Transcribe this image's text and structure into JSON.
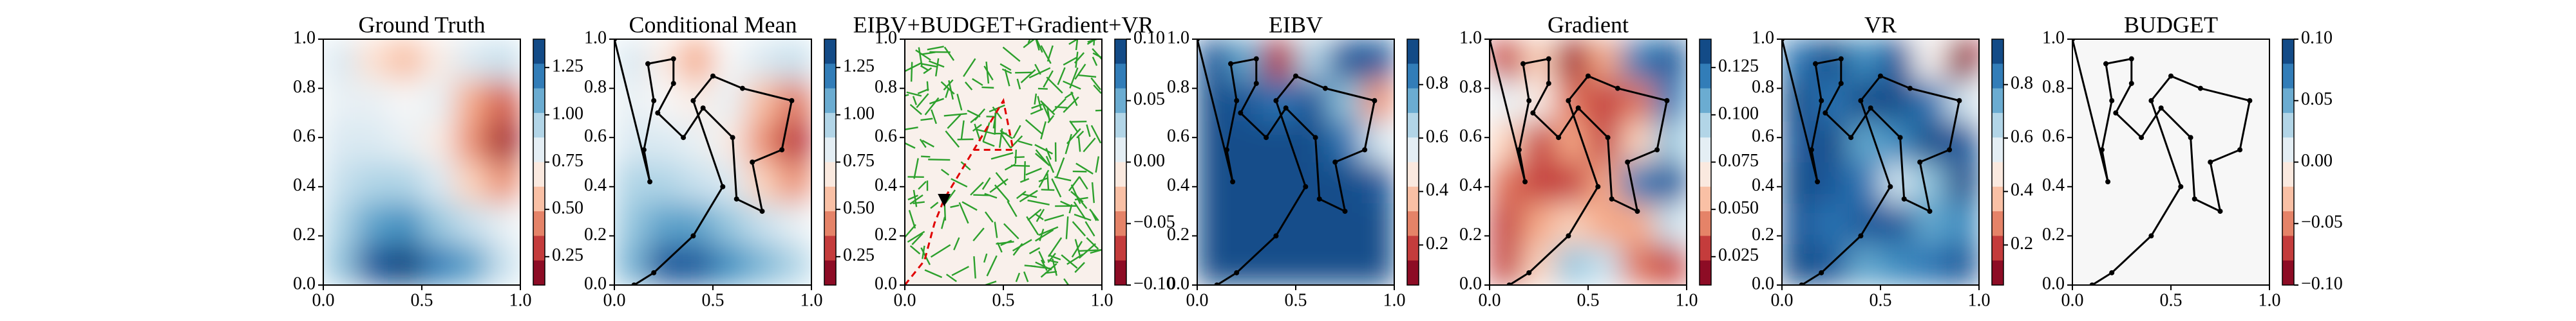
{
  "chart_data": [
    {
      "type": "heatmap",
      "title": "Ground Truth",
      "xlim": [
        0,
        1
      ],
      "ylim": [
        0,
        1
      ],
      "xticks": [
        {
          "value": 0,
          "label": "0.0"
        },
        {
          "value": 0.5,
          "label": "0.5"
        },
        {
          "value": 1,
          "label": "1.0"
        }
      ],
      "yticks": [
        {
          "value": 0,
          "label": "0.0"
        },
        {
          "value": 0.2,
          "label": "0.2"
        },
        {
          "value": 0.4,
          "label": "0.4"
        },
        {
          "value": 0.6,
          "label": "0.6"
        },
        {
          "value": 0.8,
          "label": "0.8"
        },
        {
          "value": 1,
          "label": "1.0"
        }
      ],
      "z": [
        [
          1.0,
          1.3,
          1.35,
          1.2,
          1.1,
          0.9
        ],
        [
          0.95,
          1.1,
          1.15,
          1.0,
          0.9,
          0.8
        ],
        [
          0.9,
          0.95,
          0.95,
          0.85,
          0.6,
          0.45
        ],
        [
          0.85,
          0.85,
          0.8,
          0.7,
          0.45,
          0.2
        ],
        [
          0.8,
          0.8,
          0.75,
          0.8,
          0.5,
          0.35
        ],
        [
          0.85,
          0.65,
          0.55,
          0.7,
          0.85,
          0.9
        ]
      ],
      "zlim": [
        0.1,
        1.4
      ],
      "zticks": [
        {
          "value": 0.25,
          "label": "0.25"
        },
        {
          "value": 0.5,
          "label": "0.50"
        },
        {
          "value": 0.75,
          "label": "0.75"
        },
        {
          "value": 1,
          "label": "1.00"
        },
        {
          "value": 1.25,
          "label": "1.25"
        }
      ]
    },
    {
      "type": "heatmap",
      "title": "Conditional Mean",
      "xlim": [
        0,
        1
      ],
      "ylim": [
        0,
        1
      ],
      "xticks": [
        {
          "value": 0,
          "label": "0.0"
        },
        {
          "value": 0.5,
          "label": "0.5"
        },
        {
          "value": 1,
          "label": "1.0"
        }
      ],
      "yticks": [
        {
          "value": 0,
          "label": "0.0"
        },
        {
          "value": 0.2,
          "label": "0.2"
        },
        {
          "value": 0.4,
          "label": "0.4"
        },
        {
          "value": 0.6,
          "label": "0.6"
        },
        {
          "value": 0.8,
          "label": "0.8"
        },
        {
          "value": 1,
          "label": "1.0"
        }
      ],
      "z": [
        [
          1.05,
          1.3,
          1.3,
          1.15,
          1.05,
          0.95
        ],
        [
          1.0,
          1.1,
          1.1,
          1.0,
          0.9,
          0.8
        ],
        [
          0.95,
          0.95,
          0.9,
          0.85,
          0.6,
          0.45
        ],
        [
          0.85,
          0.85,
          0.8,
          0.7,
          0.45,
          0.25
        ],
        [
          0.8,
          0.75,
          0.7,
          0.8,
          0.55,
          0.4
        ],
        [
          0.85,
          0.7,
          0.5,
          0.75,
          0.85,
          0.9
        ]
      ],
      "zlim": [
        0.1,
        1.4
      ],
      "zticks": [
        {
          "value": 0.25,
          "label": "0.25"
        },
        {
          "value": 0.5,
          "label": "0.50"
        },
        {
          "value": 0.75,
          "label": "0.75"
        },
        {
          "value": 1,
          "label": "1.00"
        },
        {
          "value": 1.25,
          "label": "1.25"
        }
      ],
      "path_x": [
        0.0,
        0.18,
        0.15,
        0.2,
        0.17,
        0.3,
        0.3,
        0.22,
        0.35,
        0.45,
        0.6,
        0.62,
        0.75,
        0.7,
        0.85,
        0.9,
        0.65,
        0.5,
        0.4,
        0.55,
        0.4,
        0.2,
        0.1
      ],
      "path_y": [
        1.0,
        0.42,
        0.55,
        0.75,
        0.9,
        0.92,
        0.82,
        0.7,
        0.6,
        0.72,
        0.6,
        0.35,
        0.3,
        0.5,
        0.55,
        0.75,
        0.8,
        0.85,
        0.75,
        0.4,
        0.2,
        0.05,
        0.0
      ]
    },
    {
      "type": "heatmap",
      "title": "EIBV+BUDGET+Gradient+VR",
      "xlim": [
        0,
        1
      ],
      "ylim": [
        0,
        1
      ],
      "xticks": [
        {
          "value": 0,
          "label": "0.0"
        },
        {
          "value": 0.5,
          "label": "0.5"
        },
        {
          "value": 1,
          "label": "1.0"
        }
      ],
      "yticks": [
        {
          "value": 0,
          "label": "0.0"
        },
        {
          "value": 0.2,
          "label": "0.2"
        },
        {
          "value": 0.4,
          "label": "0.4"
        },
        {
          "value": 0.6,
          "label": "0.6"
        },
        {
          "value": 0.8,
          "label": "0.8"
        },
        {
          "value": 1,
          "label": "1.0"
        }
      ],
      "z": [
        [
          -0.005
        ]
      ],
      "zlim": [
        -0.1,
        0.1
      ],
      "zticks": [
        {
          "value": -0.1,
          "label": "−0.10"
        },
        {
          "value": -0.05,
          "label": "−0.05"
        },
        {
          "value": 0,
          "label": "0.00"
        },
        {
          "value": 0.05,
          "label": "0.05"
        },
        {
          "value": 0.1,
          "label": "0.10"
        }
      ],
      "tree": true,
      "route_x": [
        0.0,
        0.1,
        0.15,
        0.2,
        0.35,
        0.5,
        0.55,
        0.35
      ],
      "route_y": [
        0.0,
        0.1,
        0.25,
        0.35,
        0.55,
        0.75,
        0.55,
        0.55
      ]
    },
    {
      "type": "heatmap",
      "title": "EIBV",
      "xlim": [
        0,
        1
      ],
      "ylim": [
        0,
        1
      ],
      "xticks": [
        {
          "value": 0,
          "label": "0.0"
        },
        {
          "value": 0.5,
          "label": "0.5"
        },
        {
          "value": 1,
          "label": "1.0"
        }
      ],
      "yticks": [
        {
          "value": 0,
          "label": "0.0"
        },
        {
          "value": 0.2,
          "label": "0.2"
        },
        {
          "value": 0.4,
          "label": "0.4"
        },
        {
          "value": 0.6,
          "label": "0.6"
        },
        {
          "value": 0.8,
          "label": "0.8"
        },
        {
          "value": 1,
          "label": "1.0"
        }
      ],
      "z": [
        [
          0.92,
          0.92,
          0.92,
          0.92,
          0.92,
          0.92
        ],
        [
          0.92,
          0.92,
          0.92,
          0.92,
          0.92,
          0.92
        ],
        [
          0.92,
          0.92,
          0.92,
          0.92,
          0.92,
          0.9
        ],
        [
          0.92,
          0.92,
          0.92,
          0.92,
          0.85,
          0.6
        ],
        [
          0.92,
          0.9,
          0.85,
          0.9,
          0.7,
          0.3
        ],
        [
          0.9,
          0.75,
          0.15,
          0.65,
          0.9,
          0.9
        ]
      ],
      "zlim": [
        0.05,
        0.97
      ],
      "zticks": [
        {
          "value": 0.2,
          "label": "0.2"
        },
        {
          "value": 0.4,
          "label": "0.4"
        },
        {
          "value": 0.6,
          "label": "0.6"
        },
        {
          "value": 0.8,
          "label": "0.8"
        }
      ],
      "path_x": [
        0.0,
        0.18,
        0.15,
        0.2,
        0.17,
        0.3,
        0.3,
        0.22,
        0.35,
        0.45,
        0.6,
        0.62,
        0.75,
        0.7,
        0.85,
        0.9,
        0.65,
        0.5,
        0.4,
        0.55,
        0.4,
        0.2,
        0.1
      ],
      "path_y": [
        1.0,
        0.42,
        0.55,
        0.75,
        0.9,
        0.92,
        0.82,
        0.7,
        0.6,
        0.72,
        0.6,
        0.35,
        0.3,
        0.5,
        0.55,
        0.75,
        0.8,
        0.85,
        0.75,
        0.4,
        0.2,
        0.05,
        0.0
      ]
    },
    {
      "type": "heatmap",
      "title": "Gradient",
      "xlim": [
        0,
        1
      ],
      "ylim": [
        0,
        1
      ],
      "xticks": [
        {
          "value": 0,
          "label": "0.0"
        },
        {
          "value": 0.5,
          "label": "0.5"
        },
        {
          "value": 1,
          "label": "1.0"
        }
      ],
      "yticks": [
        {
          "value": 0,
          "label": "0.0"
        },
        {
          "value": 0.2,
          "label": "0.2"
        },
        {
          "value": 0.4,
          "label": "0.4"
        },
        {
          "value": 0.6,
          "label": "0.6"
        },
        {
          "value": 0.8,
          "label": "0.8"
        },
        {
          "value": 1,
          "label": "1.0"
        }
      ],
      "z": [
        [
          0.03,
          0.06,
          0.1,
          0.09,
          0.04,
          0.03
        ],
        [
          0.03,
          0.05,
          0.06,
          0.05,
          0.05,
          0.09
        ],
        [
          0.04,
          0.03,
          0.03,
          0.05,
          0.12,
          0.13
        ],
        [
          0.06,
          0.03,
          0.05,
          0.03,
          0.06,
          0.1
        ],
        [
          0.08,
          0.07,
          0.04,
          0.03,
          0.04,
          0.12
        ],
        [
          0.03,
          0.06,
          0.02,
          0.05,
          0.12,
          0.13
        ]
      ],
      "zlim": [
        0.01,
        0.14
      ],
      "zticks": [
        {
          "value": 0.025,
          "label": "0.025"
        },
        {
          "value": 0.05,
          "label": "0.050"
        },
        {
          "value": 0.075,
          "label": "0.075"
        },
        {
          "value": 0.1,
          "label": "0.100"
        },
        {
          "value": 0.125,
          "label": "0.125"
        }
      ],
      "path_x": [
        0.0,
        0.18,
        0.15,
        0.2,
        0.17,
        0.3,
        0.3,
        0.22,
        0.35,
        0.45,
        0.6,
        0.62,
        0.75,
        0.7,
        0.85,
        0.9,
        0.65,
        0.5,
        0.4,
        0.55,
        0.4,
        0.2,
        0.1
      ],
      "path_y": [
        1.0,
        0.42,
        0.55,
        0.75,
        0.9,
        0.92,
        0.82,
        0.7,
        0.6,
        0.72,
        0.6,
        0.35,
        0.3,
        0.5,
        0.55,
        0.75,
        0.8,
        0.85,
        0.75,
        0.4,
        0.2,
        0.05,
        0.0
      ]
    },
    {
      "type": "heatmap",
      "title": "VR",
      "xlim": [
        0,
        1
      ],
      "ylim": [
        0,
        1
      ],
      "xticks": [
        {
          "value": 0,
          "label": "0.0"
        },
        {
          "value": 0.5,
          "label": "0.5"
        },
        {
          "value": 1,
          "label": "1.0"
        }
      ],
      "yticks": [
        {
          "value": 0,
          "label": "0.0"
        },
        {
          "value": 0.2,
          "label": "0.2"
        },
        {
          "value": 0.4,
          "label": "0.4"
        },
        {
          "value": 0.6,
          "label": "0.6"
        },
        {
          "value": 0.8,
          "label": "0.8"
        },
        {
          "value": 1,
          "label": "1.0"
        }
      ],
      "z": [
        [
          0.92,
          0.9,
          0.75,
          0.8,
          0.85,
          0.9
        ],
        [
          0.9,
          0.85,
          0.9,
          0.9,
          0.75,
          0.8
        ],
        [
          0.92,
          0.9,
          0.85,
          0.6,
          0.7,
          0.92
        ],
        [
          0.9,
          0.92,
          0.75,
          0.8,
          0.92,
          0.9
        ],
        [
          0.92,
          0.85,
          0.92,
          0.92,
          0.85,
          0.6
        ],
        [
          0.85,
          0.92,
          0.8,
          0.9,
          0.5,
          0.1
        ]
      ],
      "zlim": [
        0.05,
        0.97
      ],
      "zticks": [
        {
          "value": 0.2,
          "label": "0.2"
        },
        {
          "value": 0.4,
          "label": "0.4"
        },
        {
          "value": 0.6,
          "label": "0.6"
        },
        {
          "value": 0.8,
          "label": "0.8"
        }
      ],
      "path_x": [
        0.0,
        0.18,
        0.15,
        0.2,
        0.17,
        0.3,
        0.3,
        0.22,
        0.35,
        0.45,
        0.6,
        0.62,
        0.75,
        0.7,
        0.85,
        0.9,
        0.65,
        0.5,
        0.4,
        0.55,
        0.4,
        0.2,
        0.1
      ],
      "path_y": [
        1.0,
        0.42,
        0.55,
        0.75,
        0.9,
        0.92,
        0.82,
        0.7,
        0.6,
        0.72,
        0.6,
        0.35,
        0.3,
        0.5,
        0.55,
        0.75,
        0.8,
        0.85,
        0.75,
        0.4,
        0.2,
        0.05,
        0.0
      ]
    },
    {
      "type": "heatmap",
      "title": "BUDGET",
      "xlim": [
        0,
        1
      ],
      "ylim": [
        0,
        1
      ],
      "xticks": [
        {
          "value": 0,
          "label": "0.0"
        },
        {
          "value": 0.5,
          "label": "0.5"
        },
        {
          "value": 1,
          "label": "1.0"
        }
      ],
      "yticks": [
        {
          "value": 0,
          "label": "0.0"
        },
        {
          "value": 0.2,
          "label": "0.2"
        },
        {
          "value": 0.4,
          "label": "0.4"
        },
        {
          "value": 0.6,
          "label": "0.6"
        },
        {
          "value": 0.8,
          "label": "0.8"
        },
        {
          "value": 1,
          "label": "1.0"
        }
      ],
      "z": [
        [
          0
        ]
      ],
      "zlim": [
        -0.1,
        0.1
      ],
      "zticks": [
        {
          "value": -0.1,
          "label": "−0.10"
        },
        {
          "value": -0.05,
          "label": "−0.05"
        },
        {
          "value": 0,
          "label": "0.00"
        },
        {
          "value": 0.05,
          "label": "0.05"
        },
        {
          "value": 0.1,
          "label": "0.10"
        }
      ],
      "path_x": [
        0.0,
        0.18,
        0.15,
        0.2,
        0.17,
        0.3,
        0.3,
        0.22,
        0.35,
        0.45,
        0.6,
        0.62,
        0.75,
        0.7,
        0.85,
        0.9,
        0.65,
        0.5,
        0.4,
        0.55,
        0.4,
        0.2,
        0.1
      ],
      "path_y": [
        1.0,
        0.42,
        0.55,
        0.75,
        0.9,
        0.92,
        0.82,
        0.7,
        0.6,
        0.72,
        0.6,
        0.35,
        0.3,
        0.5,
        0.55,
        0.75,
        0.8,
        0.85,
        0.75,
        0.4,
        0.2,
        0.05,
        0.0
      ]
    }
  ]
}
